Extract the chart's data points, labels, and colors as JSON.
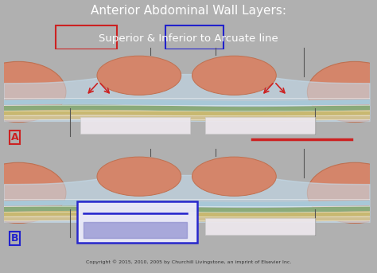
{
  "bg_color": "#b0b0b0",
  "title_line1": "Anterior Abdominal Wall Layers:",
  "title_line2": "Superior & Inferior to Arcuate line",
  "title_color": "white",
  "superior_box_color": "#cc2222",
  "inferior_box_color": "#2222cc",
  "panel_bg": "#f0f0f0",
  "label_A": "A",
  "label_B": "B",
  "label_A_box": "#cc2222",
  "label_B_box": "#2222cc",
  "copyright": "Copyright © 2015, 2010, 2005 by Churchill Livingstone, an imprint of Elsevier Inc.",
  "muscle_fill": "#d4856a",
  "muscle_stroke": "#c07050",
  "fascia_light_blue": "#c5dff0",
  "layer1_color": "#a8c8d8",
  "layer2_color": "#8aaa7a",
  "layer3_color": "#c8b870",
  "layer4_color": "#d0c090",
  "legend_box_color_top": "#e8e8f8",
  "legend_line_color": "#2222cc",
  "legend_fill_color": "#8888cc"
}
